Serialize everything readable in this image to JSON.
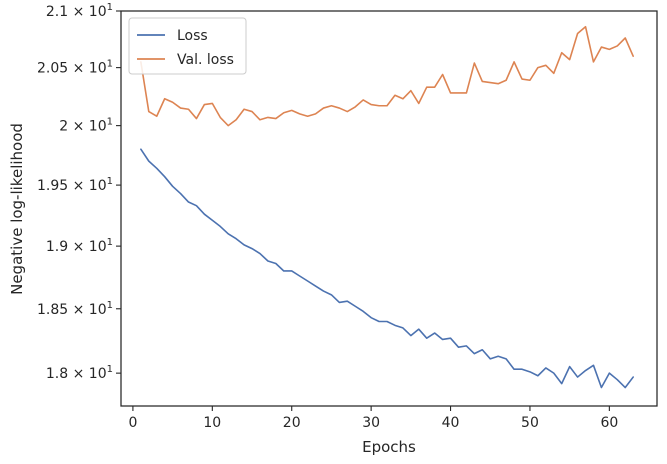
{
  "chart_data": {
    "type": "line",
    "title": "",
    "xlabel": "Epochs",
    "ylabel": "Negative log-likelihood",
    "xlim": [
      -1.5,
      66.0
    ],
    "ylim": [
      17.75,
      21.0
    ],
    "y_scale": "log",
    "grid": false,
    "legend_position": "top-left",
    "x_ticks": [
      {
        "value": 0,
        "label": "0"
      },
      {
        "value": 10,
        "label": "10"
      },
      {
        "value": 20,
        "label": "20"
      },
      {
        "value": 30,
        "label": "30"
      },
      {
        "value": 40,
        "label": "40"
      },
      {
        "value": 50,
        "label": "50"
      },
      {
        "value": 60,
        "label": "60"
      }
    ],
    "y_ticks": [
      {
        "value": 18.0,
        "mantissa": "1.8",
        "exponent": "1"
      },
      {
        "value": 18.5,
        "mantissa": "1.85",
        "exponent": "1"
      },
      {
        "value": 19.0,
        "mantissa": "1.9",
        "exponent": "1"
      },
      {
        "value": 19.5,
        "mantissa": "1.95",
        "exponent": "1"
      },
      {
        "value": 20.0,
        "mantissa": "2",
        "exponent": "1"
      },
      {
        "value": 20.5,
        "mantissa": "2.05",
        "exponent": "1"
      },
      {
        "value": 21.0,
        "mantissa": "2.1",
        "exponent": "1"
      }
    ],
    "tick_base": "10",
    "series": [
      {
        "name": "Loss",
        "color": "#4c72b0",
        "x": [
          1,
          2,
          3,
          4,
          5,
          6,
          7,
          8,
          9,
          10,
          11,
          12,
          13,
          14,
          15,
          16,
          17,
          18,
          19,
          20,
          21,
          22,
          23,
          24,
          25,
          26,
          27,
          28,
          29,
          30,
          31,
          32,
          33,
          34,
          35,
          36,
          37,
          38,
          39,
          40,
          41,
          42,
          43,
          44,
          45,
          46,
          47,
          48,
          49,
          50,
          51,
          52,
          53,
          54,
          55,
          56,
          57,
          58,
          59,
          60,
          61,
          62,
          63
        ],
        "values": [
          19.8,
          19.7,
          19.64,
          19.57,
          19.49,
          19.43,
          19.36,
          19.33,
          19.26,
          19.21,
          19.16,
          19.1,
          19.06,
          19.01,
          18.98,
          18.94,
          18.88,
          18.86,
          18.8,
          18.8,
          18.76,
          18.72,
          18.68,
          18.64,
          18.61,
          18.55,
          18.56,
          18.52,
          18.48,
          18.43,
          18.4,
          18.4,
          18.37,
          18.35,
          18.29,
          18.34,
          18.27,
          18.31,
          18.26,
          18.27,
          18.2,
          18.21,
          18.15,
          18.18,
          18.11,
          18.13,
          18.11,
          18.03,
          18.03,
          18.01,
          17.98,
          18.04,
          18.0,
          17.92,
          18.05,
          17.97,
          18.02,
          18.06,
          17.89,
          18.0,
          17.95,
          17.89,
          17.97
        ]
      },
      {
        "name": "Val. loss",
        "color": "#dd8452",
        "x": [
          1,
          2,
          3,
          4,
          5,
          6,
          7,
          8,
          9,
          10,
          11,
          12,
          13,
          14,
          15,
          16,
          17,
          18,
          19,
          20,
          21,
          22,
          23,
          24,
          25,
          26,
          27,
          28,
          29,
          30,
          31,
          32,
          33,
          34,
          35,
          36,
          37,
          38,
          39,
          40,
          41,
          42,
          43,
          44,
          45,
          46,
          47,
          48,
          49,
          50,
          51,
          52,
          53,
          54,
          55,
          56,
          57,
          58,
          59,
          60,
          61,
          62,
          63
        ],
        "values": [
          20.55,
          20.12,
          20.08,
          20.23,
          20.2,
          20.15,
          20.14,
          20.06,
          20.18,
          20.19,
          20.07,
          20.0,
          20.05,
          20.14,
          20.12,
          20.05,
          20.07,
          20.06,
          20.11,
          20.13,
          20.1,
          20.08,
          20.1,
          20.15,
          20.17,
          20.15,
          20.12,
          20.16,
          20.22,
          20.18,
          20.17,
          20.17,
          20.26,
          20.23,
          20.3,
          20.19,
          20.33,
          20.33,
          20.44,
          20.28,
          20.28,
          20.28,
          20.54,
          20.38,
          20.37,
          20.36,
          20.39,
          20.55,
          20.4,
          20.39,
          20.5,
          20.52,
          20.45,
          20.63,
          20.57,
          20.8,
          20.86,
          20.55,
          20.68,
          20.66,
          20.69,
          20.76,
          20.6
        ]
      }
    ]
  }
}
